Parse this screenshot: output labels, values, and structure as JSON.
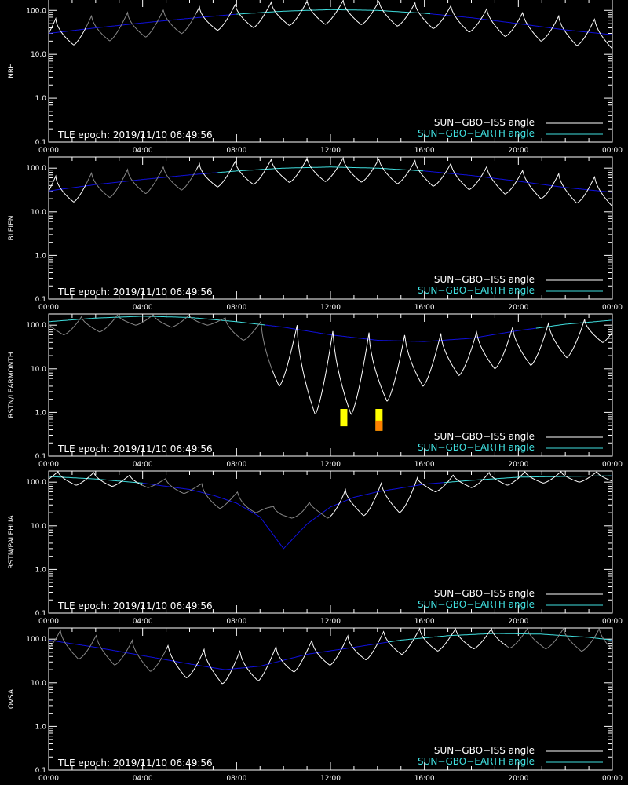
{
  "epoch_label": "TLE epoch: 2019/11/10 06:49:56",
  "legend": [
    {
      "label": "SUN−GBO−ISS angle",
      "color": "#ffffff"
    },
    {
      "label": "SUN−GBO−EARTH angle",
      "color": "#40e0e0"
    }
  ],
  "colors": {
    "background": "#000000",
    "axes": "#ffffff",
    "iss_curve_lit": "#ffffff",
    "iss_curve_dim": "#888888",
    "earth_curve_day": "#40e0e0",
    "earth_curve_night": "#1010e0",
    "marker_yellow": "#ffff00",
    "marker_orange": "#ff8000"
  },
  "chart_data": [
    {
      "type": "line",
      "ylabel": "NRH",
      "y_scale": "log",
      "ylim": [
        0.1,
        180
      ],
      "xlim": [
        "00:00",
        "24:00"
      ],
      "x_ticks": [
        "00:00",
        "04:00",
        "08:00",
        "12:00",
        "16:00",
        "20:00",
        "00:00"
      ],
      "y_ticks": [
        {
          "v": 100,
          "label": "100.0"
        },
        {
          "v": 10,
          "label": "10.0"
        },
        {
          "v": 1,
          "label": "1.0"
        },
        {
          "v": 0.1,
          "label": "0.1"
        }
      ],
      "earth_angle": {
        "x_hours": [
          0,
          2,
          4,
          6,
          8,
          10,
          12,
          14,
          16,
          18,
          20,
          22,
          24
        ],
        "deg": [
          30,
          40,
          52,
          66,
          82,
          96,
          104,
          100,
          86,
          68,
          50,
          36,
          28
        ],
        "day_range_hours": [
          8.0,
          16.3
        ]
      },
      "iss_angle": {
        "period_hours": 1.53,
        "phase_hours": 0.3,
        "min_ratio": 0.78,
        "peak_factor": 1.45,
        "dim_range_hours": [
          1.6,
          6.3
        ]
      },
      "markers": []
    },
    {
      "type": "line",
      "ylabel": "BLEIEN",
      "y_scale": "log",
      "ylim": [
        0.1,
        180
      ],
      "xlim": [
        "00:00",
        "24:00"
      ],
      "x_ticks": [
        "00:00",
        "04:00",
        "08:00",
        "12:00",
        "16:00",
        "20:00",
        "00:00"
      ],
      "y_ticks": [
        {
          "v": 100,
          "label": "100.0"
        },
        {
          "v": 10,
          "label": "10.0"
        },
        {
          "v": 1,
          "label": "1.0"
        },
        {
          "v": 0.1,
          "label": "0.1"
        }
      ],
      "earth_angle": {
        "x_hours": [
          0,
          2,
          4,
          6,
          8,
          10,
          12,
          14,
          16,
          18,
          20,
          22,
          24
        ],
        "deg": [
          30,
          42,
          55,
          70,
          86,
          100,
          106,
          100,
          86,
          68,
          50,
          36,
          28
        ],
        "day_range_hours": [
          7.2,
          16.0
        ]
      },
      "iss_angle": {
        "period_hours": 1.53,
        "phase_hours": 0.3,
        "min_ratio": 0.78,
        "peak_factor": 1.45,
        "dim_range_hours": [
          1.6,
          6.3
        ]
      },
      "markers": []
    },
    {
      "type": "line",
      "ylabel": "RSTN/LEARMONTH",
      "y_scale": "log",
      "ylim": [
        0.1,
        180
      ],
      "xlim": [
        "00:00",
        "24:00"
      ],
      "x_ticks": [
        "00:00",
        "04:00",
        "08:00",
        "12:00",
        "16:00",
        "20:00",
        "00:00"
      ],
      "y_ticks": [
        {
          "v": 100,
          "label": "100.0"
        },
        {
          "v": 10,
          "label": "10.0"
        },
        {
          "v": 1,
          "label": "1.0"
        },
        {
          "v": 0.1,
          "label": "0.1"
        }
      ],
      "earth_angle": {
        "x_hours": [
          0,
          2,
          4,
          6,
          8,
          10,
          12,
          14,
          16,
          18,
          20,
          22,
          24
        ],
        "deg": [
          120,
          145,
          160,
          150,
          120,
          90,
          60,
          45,
          42,
          50,
          75,
          105,
          130
        ],
        "day_range_hours": [
          0.0,
          9.2
        ],
        "day_range_hours_2": [
          20.8,
          24.0
        ]
      },
      "iss_angle": {
        "period_hours": 1.53,
        "phase_hours": 1.4,
        "dips_deg": [
          60,
          70,
          100,
          90,
          100,
          45,
          4.0,
          0.9,
          0.9,
          1.8,
          4.0,
          7.0,
          10.0,
          12.0,
          18.0,
          40
        ],
        "peak_factor": 1.0,
        "dim_range_hours": [
          0.0,
          9.5
        ]
      },
      "markers": [
        {
          "x_hours": 12.55,
          "y_top": 1.2,
          "y_bottom": 0.48,
          "color": "#ffff00"
        },
        {
          "x_hours": 14.05,
          "y_top": 1.2,
          "y_bottom": 0.38,
          "color": "#ffff00",
          "band": {
            "y_top": 0.65,
            "y_bottom": 0.38,
            "color": "#ff8000"
          }
        }
      ]
    },
    {
      "type": "line",
      "ylabel": "RSTN/PALEHUA",
      "y_scale": "log",
      "ylim": [
        0.1,
        180
      ],
      "xlim": [
        "00:00",
        "24:00"
      ],
      "x_ticks": [
        "00:00",
        "04:00",
        "08:00",
        "12:00",
        "16:00",
        "20:00",
        "00:00"
      ],
      "y_ticks": [
        {
          "v": 100,
          "label": "100.0"
        },
        {
          "v": 10,
          "label": "10.0"
        },
        {
          "v": 1,
          "label": "1.0"
        },
        {
          "v": 0.1,
          "label": "0.1"
        }
      ],
      "earth_angle": {
        "x_hours": [
          0,
          2,
          4,
          6,
          7,
          8,
          9,
          10,
          11,
          12,
          13,
          14,
          16,
          18,
          20,
          22,
          24
        ],
        "deg": [
          135,
          118,
          95,
          68,
          50,
          33,
          16,
          3.0,
          11,
          27,
          45,
          60,
          90,
          110,
          130,
          135,
          140
        ],
        "day_range_hours": [
          0.0,
          4.0
        ],
        "day_range_hours_2": [
          16.9,
          24.0
        ]
      },
      "iss_angle": {
        "period_hours": 1.53,
        "phase_hours": 0.4,
        "min_ratio": 0.55,
        "peak_factor": 1.25,
        "dim_range_hours": [
          4.0,
          12.0
        ],
        "dips_deg": [
          95,
          85,
          80,
          75,
          55,
          25,
          20,
          15,
          15,
          17,
          20,
          60,
          75,
          85,
          95,
          100
        ]
      },
      "markers": []
    },
    {
      "type": "line",
      "ylabel": "OVSA",
      "y_scale": "log",
      "ylim": [
        0.1,
        180
      ],
      "xlim": [
        "00:00",
        "24:00"
      ],
      "x_ticks": [
        "00:00",
        "04:00",
        "08:00",
        "12:00",
        "16:00",
        "20:00",
        "00:00"
      ],
      "y_ticks": [
        {
          "v": 100,
          "label": "100.0"
        },
        {
          "v": 10,
          "label": "10.0"
        },
        {
          "v": 1,
          "label": "1.0"
        },
        {
          "v": 0.1,
          "label": "0.1"
        }
      ],
      "earth_angle": {
        "x_hours": [
          0,
          2,
          4,
          6,
          7.5,
          9,
          11,
          13,
          15,
          17,
          19,
          21,
          23,
          24
        ],
        "deg": [
          95,
          65,
          42,
          27,
          20,
          24,
          45,
          65,
          95,
          120,
          135,
          130,
          110,
          95
        ],
        "day_range_hours": [
          14.5,
          24.0
        ]
      },
      "iss_angle": {
        "period_hours": 1.53,
        "phase_hours": 0.5,
        "min_ratio": 0.78,
        "peak_factor": 1.6,
        "dim_range_hours": [
          0.0,
          5.0
        ],
        "dim_range_hours_2": [
          19.5,
          24.0
        ]
      },
      "markers": []
    }
  ]
}
